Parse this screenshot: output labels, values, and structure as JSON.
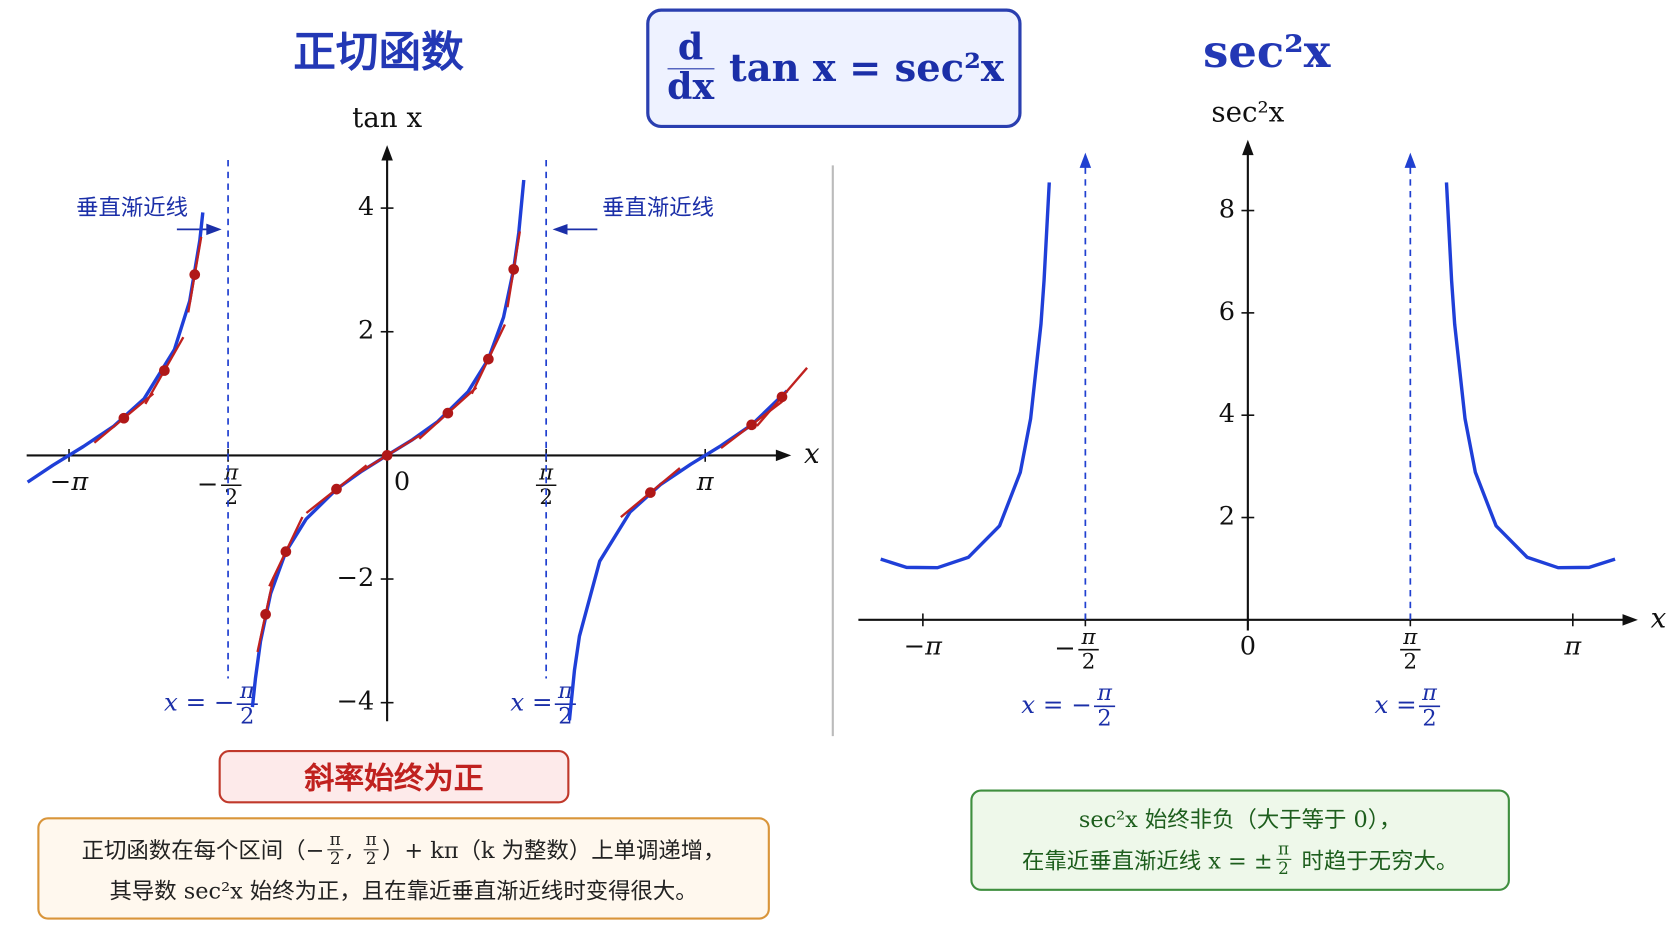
{
  "header": {
    "formula": {
      "num": "d",
      "den": "dx",
      "rest": "tan x = sec²x"
    }
  },
  "chart_data": [
    {
      "type": "line",
      "title": "正切函数",
      "ylabel": "tan x",
      "xlabel": "x",
      "xlim": [
        -3.56,
        3.97
      ],
      "ylim": [
        -4.3,
        4.95
      ],
      "xticks": [
        {
          "value": -3.1416,
          "label": "−π"
        },
        {
          "value": -1.5708,
          "label": {
            "sign": "−",
            "num": "π",
            "den": "2"
          }
        },
        0,
        {
          "value": 1.5708,
          "label": {
            "num": "π",
            "den": "2"
          }
        },
        {
          "value": 3.1416,
          "label": "π"
        }
      ],
      "yticks": [
        {
          "value": -4,
          "label": "−4"
        },
        {
          "value": -2,
          "label": "−2"
        },
        2,
        4
      ],
      "series": [
        {
          "color": "#1f3fd8",
          "x": [
            -3.55,
            -3.3,
            -3.0,
            -2.7,
            -2.4,
            -2.1,
            -1.95,
            -1.85,
            -1.82,
            null,
            -1.33,
            -1.3,
            -1.25,
            -1.15,
            -1.0,
            -0.8,
            -0.5,
            -0.25,
            0,
            0.25,
            0.5,
            0.8,
            1.0,
            1.15,
            1.25,
            1.3,
            1.35,
            null,
            1.8,
            1.85,
            1.9,
            2.1,
            2.4,
            2.7,
            3.0,
            3.3,
            3.6,
            3.95
          ],
          "values": [
            -0.432,
            -0.159,
            0.143,
            0.473,
            0.916,
            1.712,
            2.498,
            3.48,
            3.93,
            null,
            -4.07,
            -3.602,
            -3.01,
            -2.234,
            -1.557,
            -1.03,
            -0.546,
            -0.255,
            0,
            0.255,
            0.546,
            1.03,
            1.557,
            2.234,
            3.01,
            3.602,
            4.455,
            null,
            -4.286,
            -3.48,
            -2.924,
            -1.712,
            -0.916,
            -0.473,
            -0.143,
            0.159,
            0.494,
            1.044
          ]
        }
      ],
      "tangents": {
        "color": "#c0211f",
        "x": [
          -2.6,
          -2.2,
          -1.9,
          -1.2,
          -1.0,
          -0.5,
          0,
          0.6,
          1.0,
          1.25,
          2.6,
          3.6,
          3.9
        ],
        "values": [
          0.602,
          1.372,
          2.924,
          -2.572,
          -1.557,
          -0.546,
          0,
          0.684,
          1.557,
          3.01,
          -0.602,
          0.494,
          0.946
        ],
        "slopes": [
          1.362,
          2.882,
          9.55,
          7.615,
          3.426,
          1.298,
          1,
          1.468,
          3.426,
          10.06,
          1.362,
          1.244,
          1.898
        ]
      },
      "asymptotes": [
        {
          "value": -1.5708,
          "label": {
            "prefix": "x = −",
            "num": "π",
            "den": "2"
          },
          "note": "垂直渐近线"
        },
        {
          "value": 1.5708,
          "label": {
            "prefix": "x = ",
            "num": "π",
            "den": "2"
          },
          "note": "垂直渐近线"
        }
      ],
      "slope_note": "斜率始终为正",
      "description": [
        [
          "正切函数在每个区间（−",
          {
            "num": "π",
            "den": "2"
          },
          ", ",
          {
            "num": "π",
            "den": "2"
          },
          "）+ kπ（k 为整数）上单调递增，"
        ],
        [
          "其导数 sec²x 始终为正，且在靠近垂直渐近线时变得很大。"
        ]
      ]
    },
    {
      "type": "line",
      "title": "sec²x",
      "ylabel": "sec²x",
      "xlabel": "x",
      "xlim": [
        -3.6,
        3.75
      ],
      "ylim": [
        0,
        9.3
      ],
      "xticks": [
        {
          "value": -3.1416,
          "label": "−π"
        },
        {
          "value": -1.5708,
          "label": {
            "sign": "−",
            "num": "π",
            "den": "2"
          }
        },
        0,
        {
          "value": 1.5708,
          "label": {
            "num": "π",
            "den": "2"
          }
        },
        {
          "value": 3.1416,
          "label": "π"
        }
      ],
      "yticks": [
        2,
        4,
        6,
        8
      ],
      "series": [
        {
          "color": "#1f3fd8",
          "x": [
            -3.55,
            -3.3,
            -3.0,
            -2.7,
            -2.4,
            -2.2,
            -2.1,
            -2.0,
            -1.97,
            -1.92,
            null,
            1.92,
            1.97,
            2.0,
            2.1,
            2.2,
            2.4,
            2.7,
            3.0,
            3.3,
            3.55
          ],
          "values": [
            1.187,
            1.025,
            1.02,
            1.224,
            1.839,
            2.882,
            3.931,
            5.775,
            6.63,
            8.55,
            null,
            8.55,
            6.63,
            5.775,
            3.931,
            2.882,
            1.839,
            1.224,
            1.02,
            1.025,
            1.187
          ]
        }
      ],
      "asymptotes": [
        {
          "value": -1.5708,
          "label": {
            "prefix": "x = −",
            "num": "π",
            "den": "2"
          }
        },
        {
          "value": 1.5708,
          "label": {
            "prefix": "x = ",
            "num": "π",
            "den": "2"
          }
        }
      ],
      "description": [
        [
          "sec²x 始终非负（大于等于 0），"
        ],
        [
          "在靠近垂直渐近线 x = ±",
          {
            "num": "π",
            "den": "2"
          },
          " 时趋于无穷大。"
        ]
      ]
    }
  ]
}
